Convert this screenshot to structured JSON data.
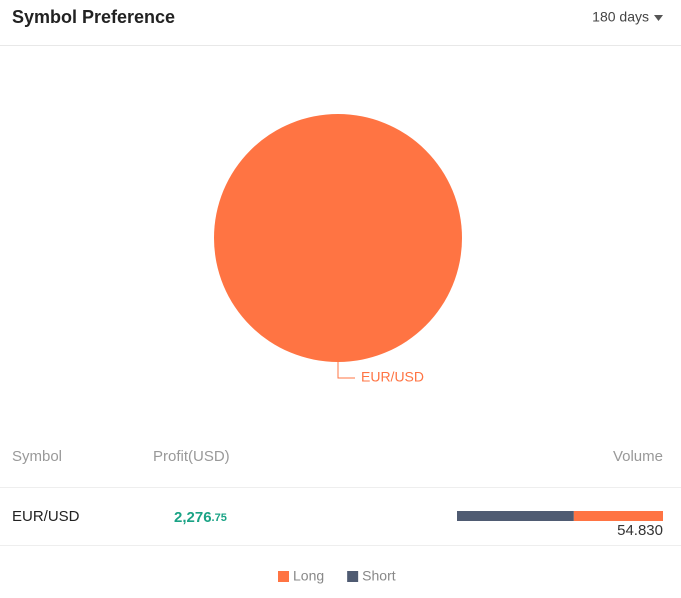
{
  "header": {
    "title": "Symbol Preference",
    "period": "180 days"
  },
  "chart_data": {
    "type": "pie",
    "categories": [
      "EUR/USD"
    ],
    "values": [
      100
    ],
    "colors": [
      "#ff7443"
    ]
  },
  "table": {
    "columns": [
      "Symbol",
      "Profit(USD)",
      "Volume"
    ],
    "rows": [
      {
        "symbol": "EUR/USD",
        "profit": {
          "whole": "2,276",
          "fraction": ".75"
        },
        "volume": "54.830",
        "short": 31.1,
        "long": 23.73
      }
    ]
  },
  "legend": [
    {
      "name": "Long",
      "color": "#ff7443"
    },
    {
      "name": "Short",
      "color": "#4f5b72"
    }
  ]
}
